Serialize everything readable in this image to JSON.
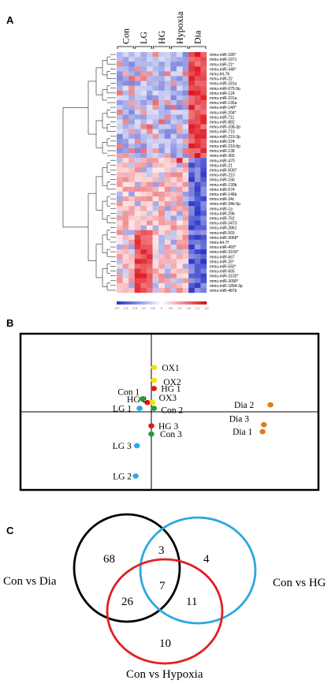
{
  "panels": {
    "a": "A",
    "b": "B",
    "c": "C"
  },
  "heatmap": {
    "groups": [
      "Con",
      "LG",
      "HG",
      "Hypoxia",
      "Dia"
    ],
    "rows": [
      "mmu-miR-185*",
      "mmu-miR-1971",
      "mmu-miR-21*",
      "mmu-miR-346*",
      "mmu-let-7b",
      "mmu-miR-22",
      "mmu-miR-181a",
      "mmu-miR-675-5p",
      "mmu-miR-124",
      "mmu-miR-101a",
      "mmu-miR-135a",
      "mmu-miR-140*",
      "mmu-miR-204*",
      "mmu-miR-711",
      "mmu-miR-882",
      "mmu-miR-338-3p",
      "mmu-miR-710",
      "mmu-miR-219-3p",
      "mmu-miR-224",
      "mmu-miR-219-5p",
      "mmu-miR-138",
      "mmu-miR-365",
      "mmu-miR-470",
      "mmu-miR-21",
      "mmu-miR-5097",
      "mmu-miR-210",
      "mmu-miR-15b",
      "mmu-miR-130b",
      "mmu-miR-674",
      "mmu-miR-146b",
      "mmu-miR-34c",
      "mmu-miR-34b-5p",
      "mmu-miR-1a",
      "mmu-miR-29b",
      "mmu-miR-762",
      "mmu-miR-3473",
      "mmu-miR-2861",
      "mmu-miR-503",
      "mmu-miR-3068*",
      "mmu-let-7f",
      "mmu-miR-493*",
      "mmu-miR-3103*",
      "mmu-miR-667",
      "mmu-miR-25*",
      "mmu-miR-592*",
      "mmu-miR-665",
      "mmu-miR-3102*",
      "mmu-miR-3090*",
      "mmu-miR-1894-3p",
      "mmu-miR-487b"
    ],
    "color_scale_labels": [
      "-3.0",
      "-2.4",
      "-1.8",
      "-1.2",
      "-0.6",
      "0",
      "0.6",
      "1.2",
      "1.8",
      "2.4",
      "3.0"
    ],
    "colors": {
      "low": "#2a35c8",
      "mid": "#ffffff",
      "high": "#e0101a"
    }
  },
  "pca": {
    "points": [
      {
        "label": "OX1",
        "group": "Hypoxia",
        "x": 0.2,
        "y": 3.8
      },
      {
        "label": "OX2",
        "group": "Hypoxia",
        "x": 0.2,
        "y": 2.7
      },
      {
        "label": "HG 1",
        "group": "HG",
        "x": 0.2,
        "y": 2.0
      },
      {
        "label": "Con 1",
        "group": "Con",
        "x": -0.7,
        "y": 1.1
      },
      {
        "label": "HG 2",
        "group": "HG",
        "x": -0.3,
        "y": 0.8
      },
      {
        "label": "OX3",
        "group": "Hypoxia",
        "x": 0.1,
        "y": 0.8
      },
      {
        "label": "LG 1",
        "group": "LG",
        "x": -0.9,
        "y": 0.3
      },
      {
        "label": "Con 2",
        "group": "Con",
        "x": 0.2,
        "y": 0.3
      },
      {
        "label": "Dia 2",
        "group": "Dia",
        "x": 9.1,
        "y": 0.6
      },
      {
        "label": "HG 3",
        "group": "HG",
        "x": 0.0,
        "y": -1.2
      },
      {
        "label": "Dia 3",
        "group": "Dia",
        "x": 8.6,
        "y": -1.1
      },
      {
        "label": "Dia 1",
        "group": "Dia",
        "x": 8.5,
        "y": -1.7
      },
      {
        "label": "Con 3",
        "group": "Con",
        "x": 0.0,
        "y": -1.9
      },
      {
        "label": "LG 3",
        "group": "LG",
        "x": -1.1,
        "y": -2.9
      },
      {
        "label": "LG 2",
        "group": "LG",
        "x": -1.2,
        "y": -5.5
      }
    ],
    "group_colors": {
      "Con": "#2a9a3a",
      "LG": "#28a8e8",
      "HG": "#e01818",
      "Hypoxia": "#f2e400",
      "Dia": "#e07a18"
    }
  },
  "venn": {
    "sets": [
      "Con vs Dia",
      "Con vs HG",
      "Con vs Hypoxia"
    ],
    "set_colors": [
      "#000000",
      "#29a8e0",
      "#e02020"
    ],
    "regions": {
      "dia_only": "68",
      "hg_only": "4",
      "hyp_only": "10",
      "dia_hg": "3",
      "dia_hyp": "26",
      "hg_hyp": "11",
      "all": "7"
    }
  }
}
